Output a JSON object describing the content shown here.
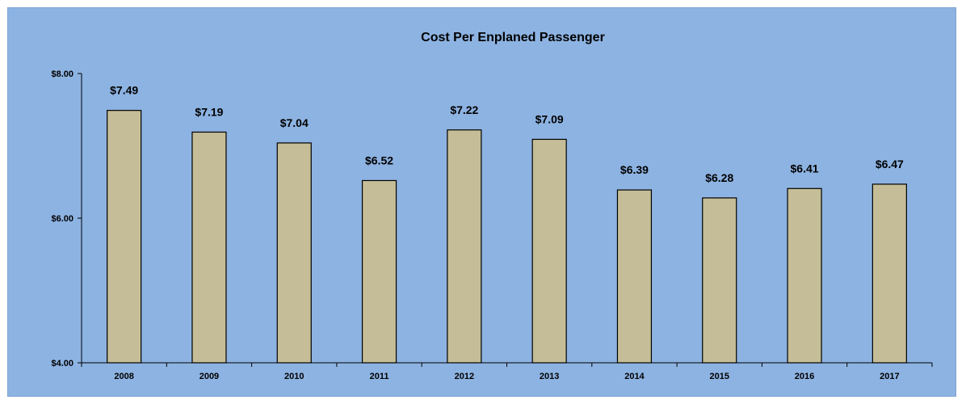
{
  "chart_data": {
    "type": "bar",
    "title": "Cost Per Enplaned Passenger",
    "xlabel": "",
    "ylabel": "",
    "categories": [
      "2008",
      "2009",
      "2010",
      "2011",
      "2012",
      "2013",
      "2014",
      "2015",
      "2016",
      "2017"
    ],
    "values": [
      7.49,
      7.19,
      7.04,
      6.52,
      7.22,
      7.09,
      6.39,
      6.28,
      6.41,
      6.47
    ],
    "data_labels": [
      "$7.49",
      "$7.19",
      "$7.04",
      "$6.52",
      "$7.22",
      "$7.09",
      "$6.39",
      "$6.28",
      "$6.41",
      "$6.47"
    ],
    "ylim": [
      4,
      8
    ],
    "yticks": [
      4,
      6,
      8
    ],
    "ytick_labels": [
      "$4.00",
      "$6.00",
      "$8.00"
    ],
    "grid": false,
    "legend": "none",
    "colors": {
      "background": "#8db3e2",
      "bar_fill": "#c4bd97",
      "bar_stroke": "#000000",
      "axis": "#000000"
    }
  }
}
